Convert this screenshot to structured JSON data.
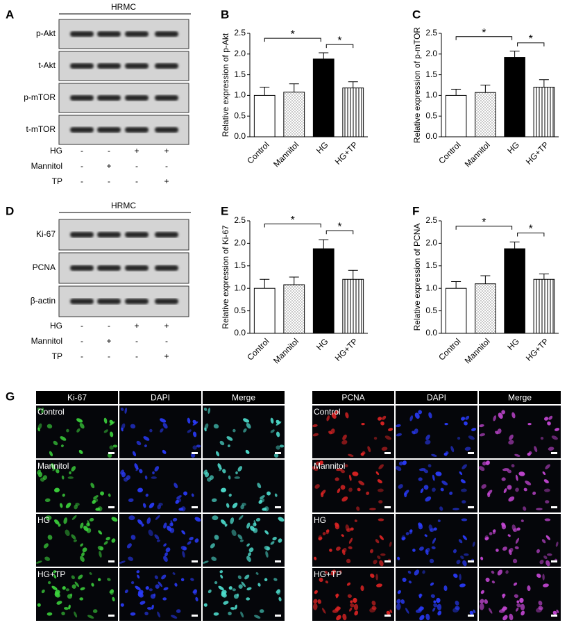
{
  "blots": [
    {
      "panel_label": "A",
      "header": "HRMC",
      "rows": [
        "p-Akt",
        "t-Akt",
        "p-mTOR",
        "t-mTOR"
      ],
      "treatments": [
        {
          "name": "HG",
          "signs": [
            "-",
            "-",
            "+",
            "+"
          ]
        },
        {
          "name": "Mannitol",
          "signs": [
            "-",
            "+",
            "-",
            "-"
          ]
        },
        {
          "name": "TP",
          "signs": [
            "-",
            "-",
            "-",
            "+"
          ]
        }
      ]
    },
    {
      "panel_label": "D",
      "header": "HRMC",
      "rows": [
        "Ki-67",
        "PCNA",
        "β-actin"
      ],
      "treatments": [
        {
          "name": "HG",
          "signs": [
            "-",
            "-",
            "+",
            "+"
          ]
        },
        {
          "name": "Mannitol",
          "signs": [
            "-",
            "+",
            "-",
            "-"
          ]
        },
        {
          "name": "TP",
          "signs": [
            "-",
            "-",
            "-",
            "+"
          ]
        }
      ]
    }
  ],
  "chart_data": [
    {
      "type": "bar",
      "panel_label": "B",
      "ylabel": "Relative  expression of p-Akt",
      "categories": [
        "Control",
        "Mannitol",
        "HG",
        "HG+TP"
      ],
      "values": [
        1.0,
        1.08,
        1.88,
        1.18
      ],
      "errors": [
        0.2,
        0.2,
        0.15,
        0.15
      ],
      "patterns": [
        "none",
        "dots",
        "solid",
        "vstripes"
      ],
      "ylim": [
        0,
        2.5
      ],
      "yticks": [
        {
          "value": 0,
          "label": "0.0"
        },
        0.5,
        {
          "value": 1,
          "label": "1.0"
        },
        1.5,
        {
          "value": 2,
          "label": "2.0"
        },
        2.5
      ],
      "significance": [
        {
          "from": 0,
          "to": 2,
          "label": "*"
        },
        {
          "from": 2,
          "to": 3,
          "label": "*"
        }
      ]
    },
    {
      "type": "bar",
      "panel_label": "C",
      "ylabel": "Relative  expression of p-mTOR",
      "categories": [
        "Control",
        "Mannitol",
        "HG",
        "HG+TP"
      ],
      "values": [
        1.0,
        1.07,
        1.92,
        1.2
      ],
      "errors": [
        0.15,
        0.18,
        0.15,
        0.18
      ],
      "patterns": [
        "none",
        "dots",
        "solid",
        "vstripes"
      ],
      "ylim": [
        0,
        2.5
      ],
      "yticks": [
        {
          "value": 0,
          "label": "0.0"
        },
        0.5,
        {
          "value": 1,
          "label": "1.0"
        },
        1.5,
        {
          "value": 2,
          "label": "2.0"
        },
        2.5
      ],
      "significance": [
        {
          "from": 0,
          "to": 2,
          "label": "*"
        },
        {
          "from": 2,
          "to": 3,
          "label": "*"
        }
      ]
    },
    {
      "type": "bar",
      "panel_label": "E",
      "ylabel": "Relative  expression of Ki-67",
      "categories": [
        "Control",
        "Mannitol",
        "HG",
        "HG+TP"
      ],
      "values": [
        1.0,
        1.08,
        1.88,
        1.2
      ],
      "errors": [
        0.2,
        0.17,
        0.2,
        0.2
      ],
      "patterns": [
        "none",
        "dots",
        "solid",
        "vstripes"
      ],
      "ylim": [
        0,
        2.5
      ],
      "yticks": [
        {
          "value": 0,
          "label": "0.0"
        },
        0.5,
        {
          "value": 1,
          "label": "1.0"
        },
        1.5,
        {
          "value": 2,
          "label": "2.0"
        },
        2.5
      ],
      "significance": [
        {
          "from": 0,
          "to": 2,
          "label": "*"
        },
        {
          "from": 2,
          "to": 3,
          "label": "*"
        }
      ]
    },
    {
      "type": "bar",
      "panel_label": "F",
      "ylabel": "Relative  expression of PCNA",
      "categories": [
        "Control",
        "Mannitol",
        "HG",
        "HG+TP"
      ],
      "values": [
        1.0,
        1.1,
        1.88,
        1.2
      ],
      "errors": [
        0.15,
        0.18,
        0.15,
        0.12
      ],
      "patterns": [
        "none",
        "dots",
        "solid",
        "vstripes"
      ],
      "ylim": [
        0,
        2.5
      ],
      "yticks": [
        {
          "value": 0,
          "label": "0.0"
        },
        0.5,
        {
          "value": 1,
          "label": "1.0"
        },
        1.5,
        {
          "value": 2,
          "label": "2.0"
        },
        2.5
      ],
      "significance": [
        {
          "from": 0,
          "to": 2,
          "label": "*"
        },
        {
          "from": 2,
          "to": 3,
          "label": "*"
        }
      ]
    }
  ],
  "images": {
    "panel_label": "G",
    "groups": [
      {
        "columns": [
          "Ki-67",
          "DAPI",
          "Merge"
        ],
        "colors": [
          "#3dd63d",
          "#2a3cff",
          "#4fe0d0"
        ],
        "rows": [
          "Control",
          "Mannitol",
          "HG",
          "HG+TP"
        ]
      },
      {
        "columns": [
          "PCNA",
          "DAPI",
          "Merge"
        ],
        "colors": [
          "#e02424",
          "#2a3cff",
          "#c848d8"
        ],
        "rows": [
          "Control",
          "Mannitol",
          "HG",
          "HG+TP"
        ]
      }
    ]
  }
}
